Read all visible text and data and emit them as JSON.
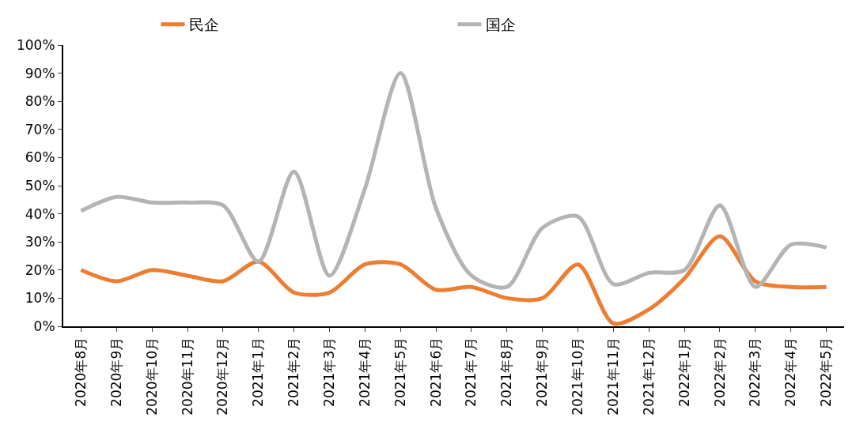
{
  "chart_data": {
    "type": "line",
    "categories": [
      "2020年8月",
      "2020年9月",
      "2020年10月",
      "2020年11月",
      "2020年12月",
      "2021年1月",
      "2021年2月",
      "2021年3月",
      "2021年4月",
      "2021年5月",
      "2021年6月",
      "2021年7月",
      "2021年8月",
      "2021年9月",
      "2021年10月",
      "2021年11月",
      "2021年12月",
      "2022年1月",
      "2022年2月",
      "2022年3月",
      "2022年4月",
      "2022年5月"
    ],
    "series": [
      {
        "name": "民企",
        "color": "#ed7d31",
        "values": [
          20,
          16,
          20,
          18,
          16,
          23,
          12,
          12,
          22,
          22,
          13,
          14,
          10,
          10,
          22,
          1,
          6,
          17,
          32,
          16,
          14,
          14
        ]
      },
      {
        "name": "国企",
        "color": "#b4b4b4",
        "values": [
          41,
          46,
          44,
          44,
          43,
          23,
          55,
          18,
          49,
          90,
          42,
          18,
          14,
          35,
          39,
          15,
          19,
          20,
          43,
          14,
          29,
          28
        ]
      }
    ],
    "ylim": [
      0,
      100
    ],
    "yticks": [
      {
        "value": 0,
        "label": "0%"
      },
      {
        "value": 10,
        "label": "10%"
      },
      {
        "value": 20,
        "label": "20%"
      },
      {
        "value": 30,
        "label": "30%"
      },
      {
        "value": 40,
        "label": "40%"
      },
      {
        "value": 50,
        "label": "50%"
      },
      {
        "value": 60,
        "label": "60%"
      },
      {
        "value": 70,
        "label": "70%"
      },
      {
        "value": 80,
        "label": "80%"
      },
      {
        "value": 90,
        "label": "90%"
      },
      {
        "value": 100,
        "label": "100%"
      }
    ],
    "legend": "top",
    "marker": "none",
    "line_style": "solid"
  }
}
